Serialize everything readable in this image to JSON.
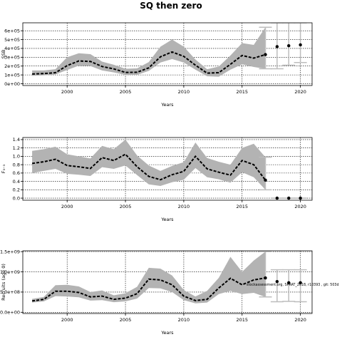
{
  "figure": {
    "title": "SQ then zero",
    "note": "stockassessment.org, SPRAT_2018, r10393 , git: 503d"
  },
  "chart_data": [
    {
      "type": "line",
      "title": "",
      "xlabel": "Years",
      "ylabel": "SSB",
      "xlim": [
        1996.2,
        2021.0
      ],
      "ylim": [
        -20000,
        690000
      ],
      "xticks": [
        2000,
        2005,
        2010,
        2015,
        2020
      ],
      "yticks": [
        0,
        100000,
        200000,
        300000,
        400000,
        500000,
        600000
      ],
      "ytick_labels": [
        "0e+00",
        "1e+05",
        "2e+05",
        "3e+05",
        "4e+05",
        "5e+05",
        "6e+05"
      ],
      "grid": true,
      "historical": {
        "x": [
          1997,
          1998,
          1999,
          2000,
          2001,
          2002,
          2003,
          2004,
          2005,
          2006,
          2007,
          2008,
          2009,
          2010,
          2011,
          2012,
          2013,
          2014,
          2015,
          2016,
          2017
        ],
        "estimate": [
          110000,
          115000,
          125000,
          205000,
          258000,
          252000,
          195000,
          168000,
          128000,
          130000,
          180000,
          305000,
          360000,
          310000,
          210000,
          120000,
          125000,
          220000,
          320000,
          290000,
          330000
        ],
        "lower": [
          90000,
          95000,
          105000,
          155000,
          205000,
          200000,
          150000,
          128000,
          100000,
          100000,
          145000,
          240000,
          280000,
          240000,
          160000,
          85000,
          80000,
          160000,
          220000,
          190000,
          170000
        ],
        "upper": [
          150000,
          150000,
          165000,
          300000,
          345000,
          335000,
          250000,
          215000,
          170000,
          175000,
          245000,
          420000,
          500000,
          420000,
          275000,
          165000,
          195000,
          320000,
          460000,
          440000,
          640000
        ]
      },
      "forecast": {
        "x": [
          2018,
          2019,
          2020
        ],
        "estimate": [
          420000,
          430000,
          440000
        ],
        "lower": [
          170000,
          210000,
          240000
        ],
        "upper": [
          690000,
          690000,
          690000
        ]
      }
    },
    {
      "type": "line",
      "title": "",
      "xlabel": "Years",
      "ylabel": "F₃₋₃",
      "xlim": [
        1996.2,
        2021.0
      ],
      "ylim": [
        -0.05,
        1.45
      ],
      "xticks": [
        2000,
        2005,
        2010,
        2015,
        2020
      ],
      "yticks": [
        0.0,
        0.2,
        0.4,
        0.6,
        0.8,
        1.0,
        1.2,
        1.4
      ],
      "ytick_labels": [
        "0.0",
        "0.2",
        "0.4",
        "0.6",
        "0.8",
        "1.0",
        "1.2",
        "1.4"
      ],
      "grid": true,
      "historical": {
        "x": [
          1997,
          1998,
          1999,
          2000,
          2001,
          2002,
          2003,
          2004,
          2005,
          2006,
          2007,
          2008,
          2009,
          2010,
          2011,
          2012,
          2013,
          2014,
          2015,
          2016,
          2017
        ],
        "estimate": [
          0.83,
          0.87,
          0.93,
          0.78,
          0.75,
          0.71,
          0.97,
          0.9,
          1.05,
          0.75,
          0.52,
          0.44,
          0.56,
          0.64,
          1.0,
          0.7,
          0.62,
          0.55,
          0.9,
          0.8,
          0.43
        ],
        "lower": [
          0.6,
          0.65,
          0.7,
          0.58,
          0.56,
          0.53,
          0.74,
          0.7,
          0.78,
          0.55,
          0.33,
          0.29,
          0.38,
          0.44,
          0.72,
          0.5,
          0.45,
          0.37,
          0.62,
          0.5,
          0.2
        ],
        "upper": [
          1.13,
          1.17,
          1.23,
          1.05,
          1.0,
          0.95,
          1.25,
          1.17,
          1.4,
          1.02,
          0.78,
          0.65,
          0.77,
          0.86,
          1.33,
          0.96,
          0.87,
          0.8,
          1.2,
          1.3,
          0.98
        ]
      },
      "forecast": {
        "x": [
          2018,
          2019,
          2020
        ],
        "estimate": [
          0,
          0,
          0
        ],
        "lower": [
          0,
          0,
          0
        ],
        "upper": [
          0,
          0,
          0
        ]
      }
    },
    {
      "type": "line",
      "title": "",
      "xlabel": "Years",
      "ylabel": "Recruits (age 0)",
      "xlim": [
        1996.2,
        2021.0
      ],
      "ylim": [
        -30000000,
        1520000000
      ],
      "xticks": [
        2000,
        2005,
        2010,
        2015,
        2020
      ],
      "yticks": [
        0,
        500000000,
        1000000000,
        1500000000
      ],
      "ytick_labels": [
        "0.0e+00",
        "5.0e+08",
        "1.0e+09",
        "1.5e+09"
      ],
      "grid": true,
      "historical": {
        "x": [
          1997,
          1998,
          1999,
          2000,
          2001,
          2002,
          2003,
          2004,
          2005,
          2006,
          2007,
          2008,
          2009,
          2010,
          2011,
          2012,
          2013,
          2014,
          2015,
          2016,
          2017
        ],
        "estimate": [
          280000000,
          320000000,
          520000000,
          520000000,
          490000000,
          380000000,
          400000000,
          320000000,
          350000000,
          460000000,
          820000000,
          800000000,
          680000000,
          400000000,
          290000000,
          320000000,
          600000000,
          840000000,
          680000000,
          800000000,
          850000000
        ],
        "lower": [
          240000000,
          270000000,
          400000000,
          390000000,
          370000000,
          290000000,
          300000000,
          250000000,
          270000000,
          340000000,
          600000000,
          590000000,
          500000000,
          300000000,
          220000000,
          240000000,
          450000000,
          530000000,
          450000000,
          480000000,
          380000000
        ],
        "upper": [
          330000000,
          380000000,
          670000000,
          680000000,
          640000000,
          500000000,
          540000000,
          420000000,
          470000000,
          630000000,
          1100000000,
          1080000000,
          910000000,
          550000000,
          390000000,
          530000000,
          850000000,
          1370000000,
          1000000000,
          1280000000,
          1500000000
        ]
      },
      "forecast": {
        "x": [
          2018,
          2019,
          2020
        ],
        "estimate": [
          760000000,
          730000000,
          730000000
        ],
        "lower": [
          260000000,
          270000000,
          260000000
        ],
        "upper": [
          1050000000,
          1050000000,
          1050000000
        ]
      }
    }
  ]
}
